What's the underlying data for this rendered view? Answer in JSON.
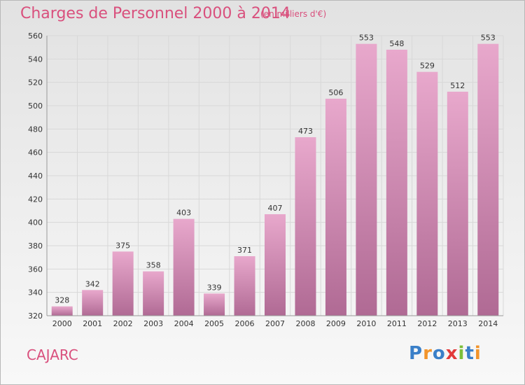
{
  "title": "Charges de Personnel 2000 à 2014",
  "subtitle": "(en milliers d'€)",
  "commune": "CAJARC",
  "logo": {
    "letters": [
      "P",
      "r",
      "o",
      "x",
      "i",
      "t",
      "i"
    ],
    "colors": [
      "#3a7fc8",
      "#f2942a",
      "#3a7fc8",
      "#e23a3a",
      "#7cbf3a",
      "#3a7fc8",
      "#f2942a"
    ]
  },
  "colors": {
    "bar_top": "#e8a8cc",
    "bar_bottom": "#b06a94",
    "title": "#d9507d",
    "grid": "#d8d8d8",
    "axis_text": "#333333"
  },
  "chart_data": {
    "type": "bar",
    "categories": [
      "2000",
      "2001",
      "2002",
      "2003",
      "2004",
      "2005",
      "2006",
      "2007",
      "2008",
      "2009",
      "2010",
      "2011",
      "2012",
      "2013",
      "2014"
    ],
    "values": [
      328,
      342,
      375,
      358,
      403,
      339,
      371,
      407,
      473,
      506,
      553,
      548,
      529,
      512,
      553
    ],
    "data_labels": [
      "328",
      "342",
      "375",
      "358",
      "403",
      "339",
      "371",
      "407",
      "473",
      "506",
      "553",
      "548",
      "529",
      "512",
      "553"
    ],
    "yticks": [
      320,
      340,
      360,
      380,
      400,
      420,
      440,
      460,
      480,
      500,
      520,
      540,
      560
    ],
    "ylim": [
      320,
      560
    ],
    "xlabel": "",
    "ylabel": "",
    "grid": true
  }
}
